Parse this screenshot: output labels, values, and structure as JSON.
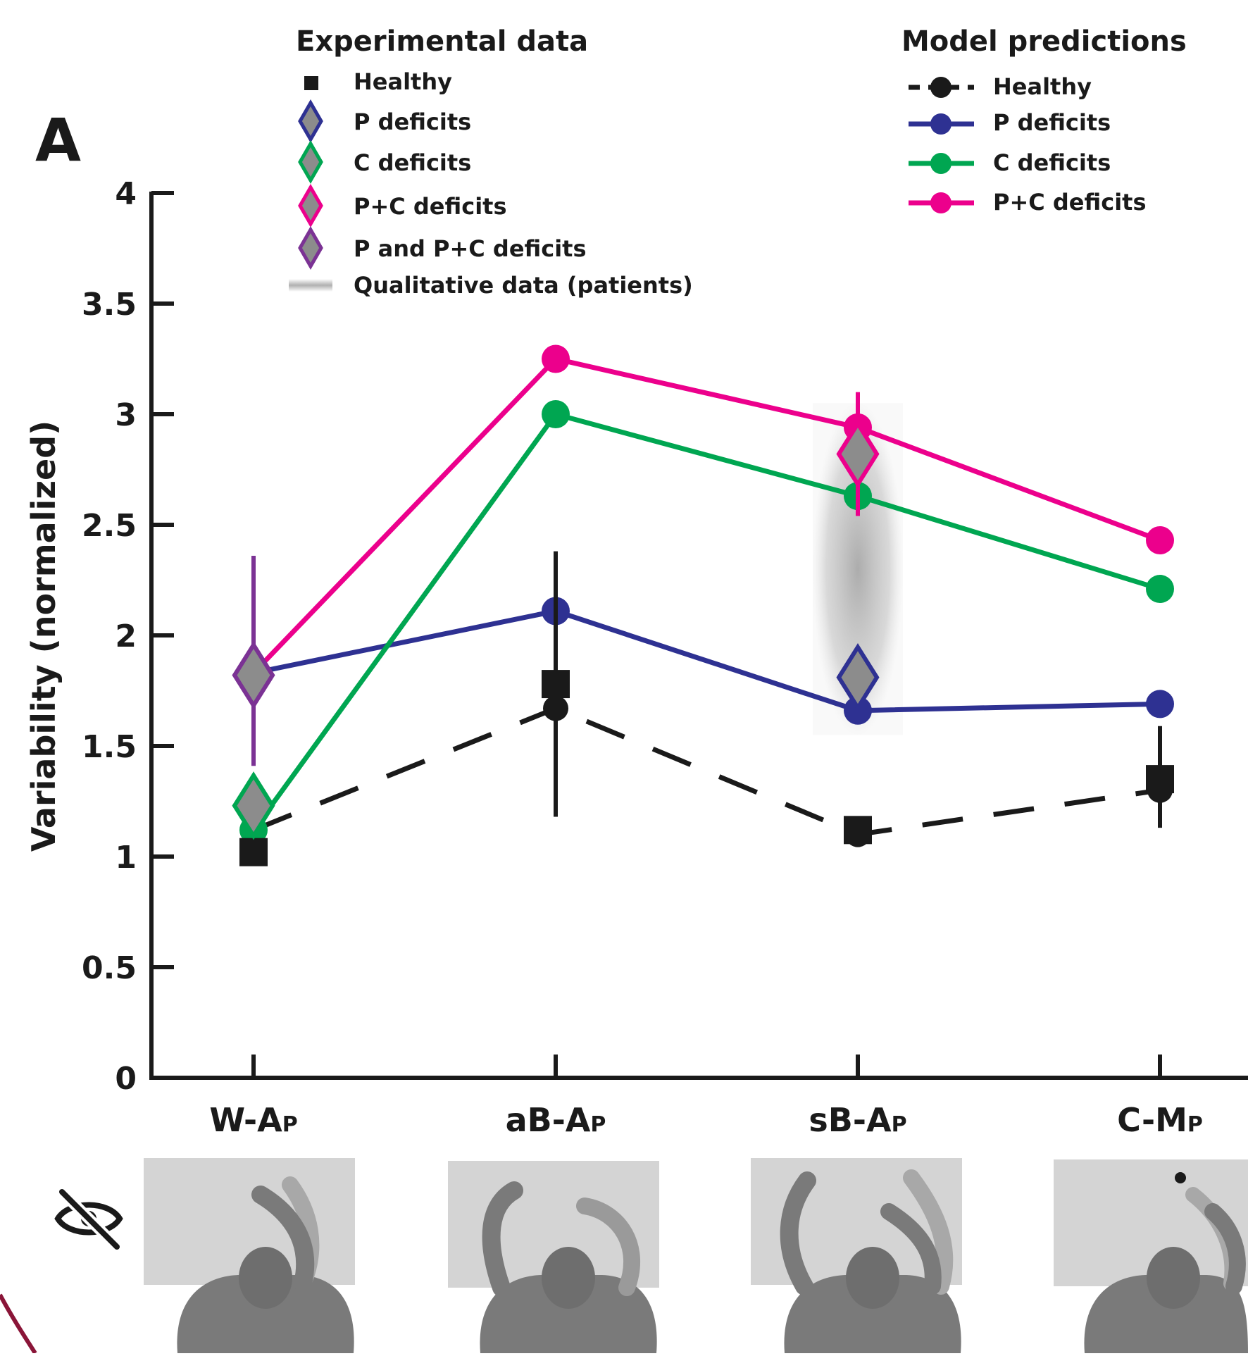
{
  "panel_label": "A",
  "legend": {
    "experimental_title": "Experimental data",
    "experimental_items": [
      "Healthy",
      "P deficits",
      "C deficits",
      "P+C deficits",
      "P and P+C deficits",
      "Qualitative data (patients)"
    ],
    "model_title": "Model predictions",
    "model_items": [
      "Healthy",
      "P deficits",
      "C deficits",
      "P+C deficits"
    ]
  },
  "colors": {
    "healthy": "#1a1a1a",
    "p_deficits": "#2e3192",
    "c_deficits": "#00a651",
    "pc_deficits": "#ec008c",
    "p_and_pc": "#7b3294",
    "marker_fill": "#8c8c8c",
    "qualitative": "#b8b8b8",
    "scene_panel": "#d4d4d4",
    "arm": "#7a7a7a"
  },
  "icons": {
    "no_vision": "eye-slash-icon"
  },
  "chart_data": {
    "type": "line",
    "ylabel": "Variability (normalized)",
    "xlabel": "",
    "ylim": [
      0,
      4
    ],
    "yticks": [
      0,
      0.5,
      1,
      1.5,
      2,
      2.5,
      3,
      3.5,
      4
    ],
    "ytick_labels": [
      "0",
      "0.5",
      "1",
      "1.5",
      "2",
      "2.5",
      "3",
      "3.5",
      "4"
    ],
    "categories": [
      {
        "main": "W-A",
        "sub": "P"
      },
      {
        "main": "aB-A",
        "sub": "P"
      },
      {
        "main": "sB-A",
        "sub": "P"
      },
      {
        "main": "C-M",
        "sub": "P"
      }
    ],
    "model_series": [
      {
        "name": "Healthy",
        "values": [
          1.12,
          1.67,
          1.1,
          1.3
        ],
        "dashed": true
      },
      {
        "name": "P deficits",
        "values": [
          1.83,
          2.11,
          1.66,
          1.69
        ],
        "dashed": false
      },
      {
        "name": "C deficits",
        "values": [
          1.12,
          3.0,
          2.63,
          2.21
        ],
        "dashed": false
      },
      {
        "name": "P+C deficits",
        "values": [
          1.83,
          3.25,
          2.94,
          2.43
        ],
        "dashed": false
      }
    ],
    "experimental_points": [
      {
        "group": "Healthy",
        "x": 0,
        "y": 1.02,
        "marker": "square"
      },
      {
        "group": "Healthy",
        "x": 1,
        "y": 1.78,
        "err_low": 1.18,
        "err_high": 2.38,
        "marker": "square"
      },
      {
        "group": "Healthy",
        "x": 2,
        "y": 1.12,
        "marker": "square"
      },
      {
        "group": "Healthy",
        "x": 3,
        "y": 1.35,
        "err_low": 1.13,
        "err_high": 1.59,
        "marker": "square"
      },
      {
        "group": "P deficits",
        "x": 2,
        "y": 1.81,
        "marker": "diamond"
      },
      {
        "group": "C deficits",
        "x": 0,
        "y": 1.23,
        "marker": "diamond"
      },
      {
        "group": "P+C deficits",
        "x": 2,
        "y": 2.82,
        "err_low": 2.54,
        "err_high": 3.1,
        "marker": "diamond"
      },
      {
        "group": "P and P+C deficits",
        "x": 0,
        "y": 1.82,
        "err_low": 1.41,
        "err_high": 2.36,
        "marker": "diamond"
      }
    ],
    "qualitative_band": {
      "x": 2,
      "y_low": 1.55,
      "y_high": 3.05
    },
    "grid": false,
    "legend_placement": "top"
  }
}
